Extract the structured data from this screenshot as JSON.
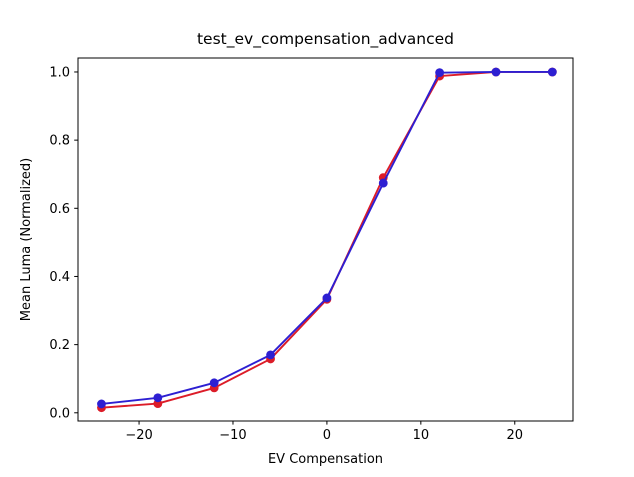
{
  "figure": {
    "background": "#ffffff",
    "text_color": "#000000"
  },
  "chart_data": {
    "type": "line",
    "title": "test_ev_compensation_advanced",
    "xlabel": "EV Compensation",
    "ylabel": "Mean Luma (Normalized)",
    "x": [
      -24,
      -18,
      -12,
      -6,
      0,
      6,
      12,
      18,
      24
    ],
    "series": [
      {
        "name": "red-series",
        "color": "#dc1c28",
        "marker": "circle",
        "values": [
          0.015,
          0.027,
          0.073,
          0.158,
          0.333,
          0.69,
          0.988,
          1.0,
          1.0
        ]
      },
      {
        "name": "blue-series",
        "color": "#2d1fd2",
        "marker": "circle",
        "values": [
          0.026,
          0.044,
          0.088,
          0.17,
          0.337,
          0.674,
          0.998,
          1.0,
          1.0
        ]
      }
    ],
    "xticks": [
      -20,
      -10,
      0,
      10,
      20
    ],
    "xtick_labels": [
      "−20",
      "−10",
      "0",
      "10",
      "20"
    ],
    "yticks": [
      0.0,
      0.2,
      0.4,
      0.6,
      0.8,
      1.0
    ],
    "ytick_labels": [
      "0.0",
      "0.2",
      "0.4",
      "0.6",
      "0.8",
      "1.0"
    ],
    "xlim": [
      -26.5,
      26.2
    ],
    "ylim": [
      -0.0235,
      1.041
    ],
    "grid": false,
    "legend": "none"
  }
}
